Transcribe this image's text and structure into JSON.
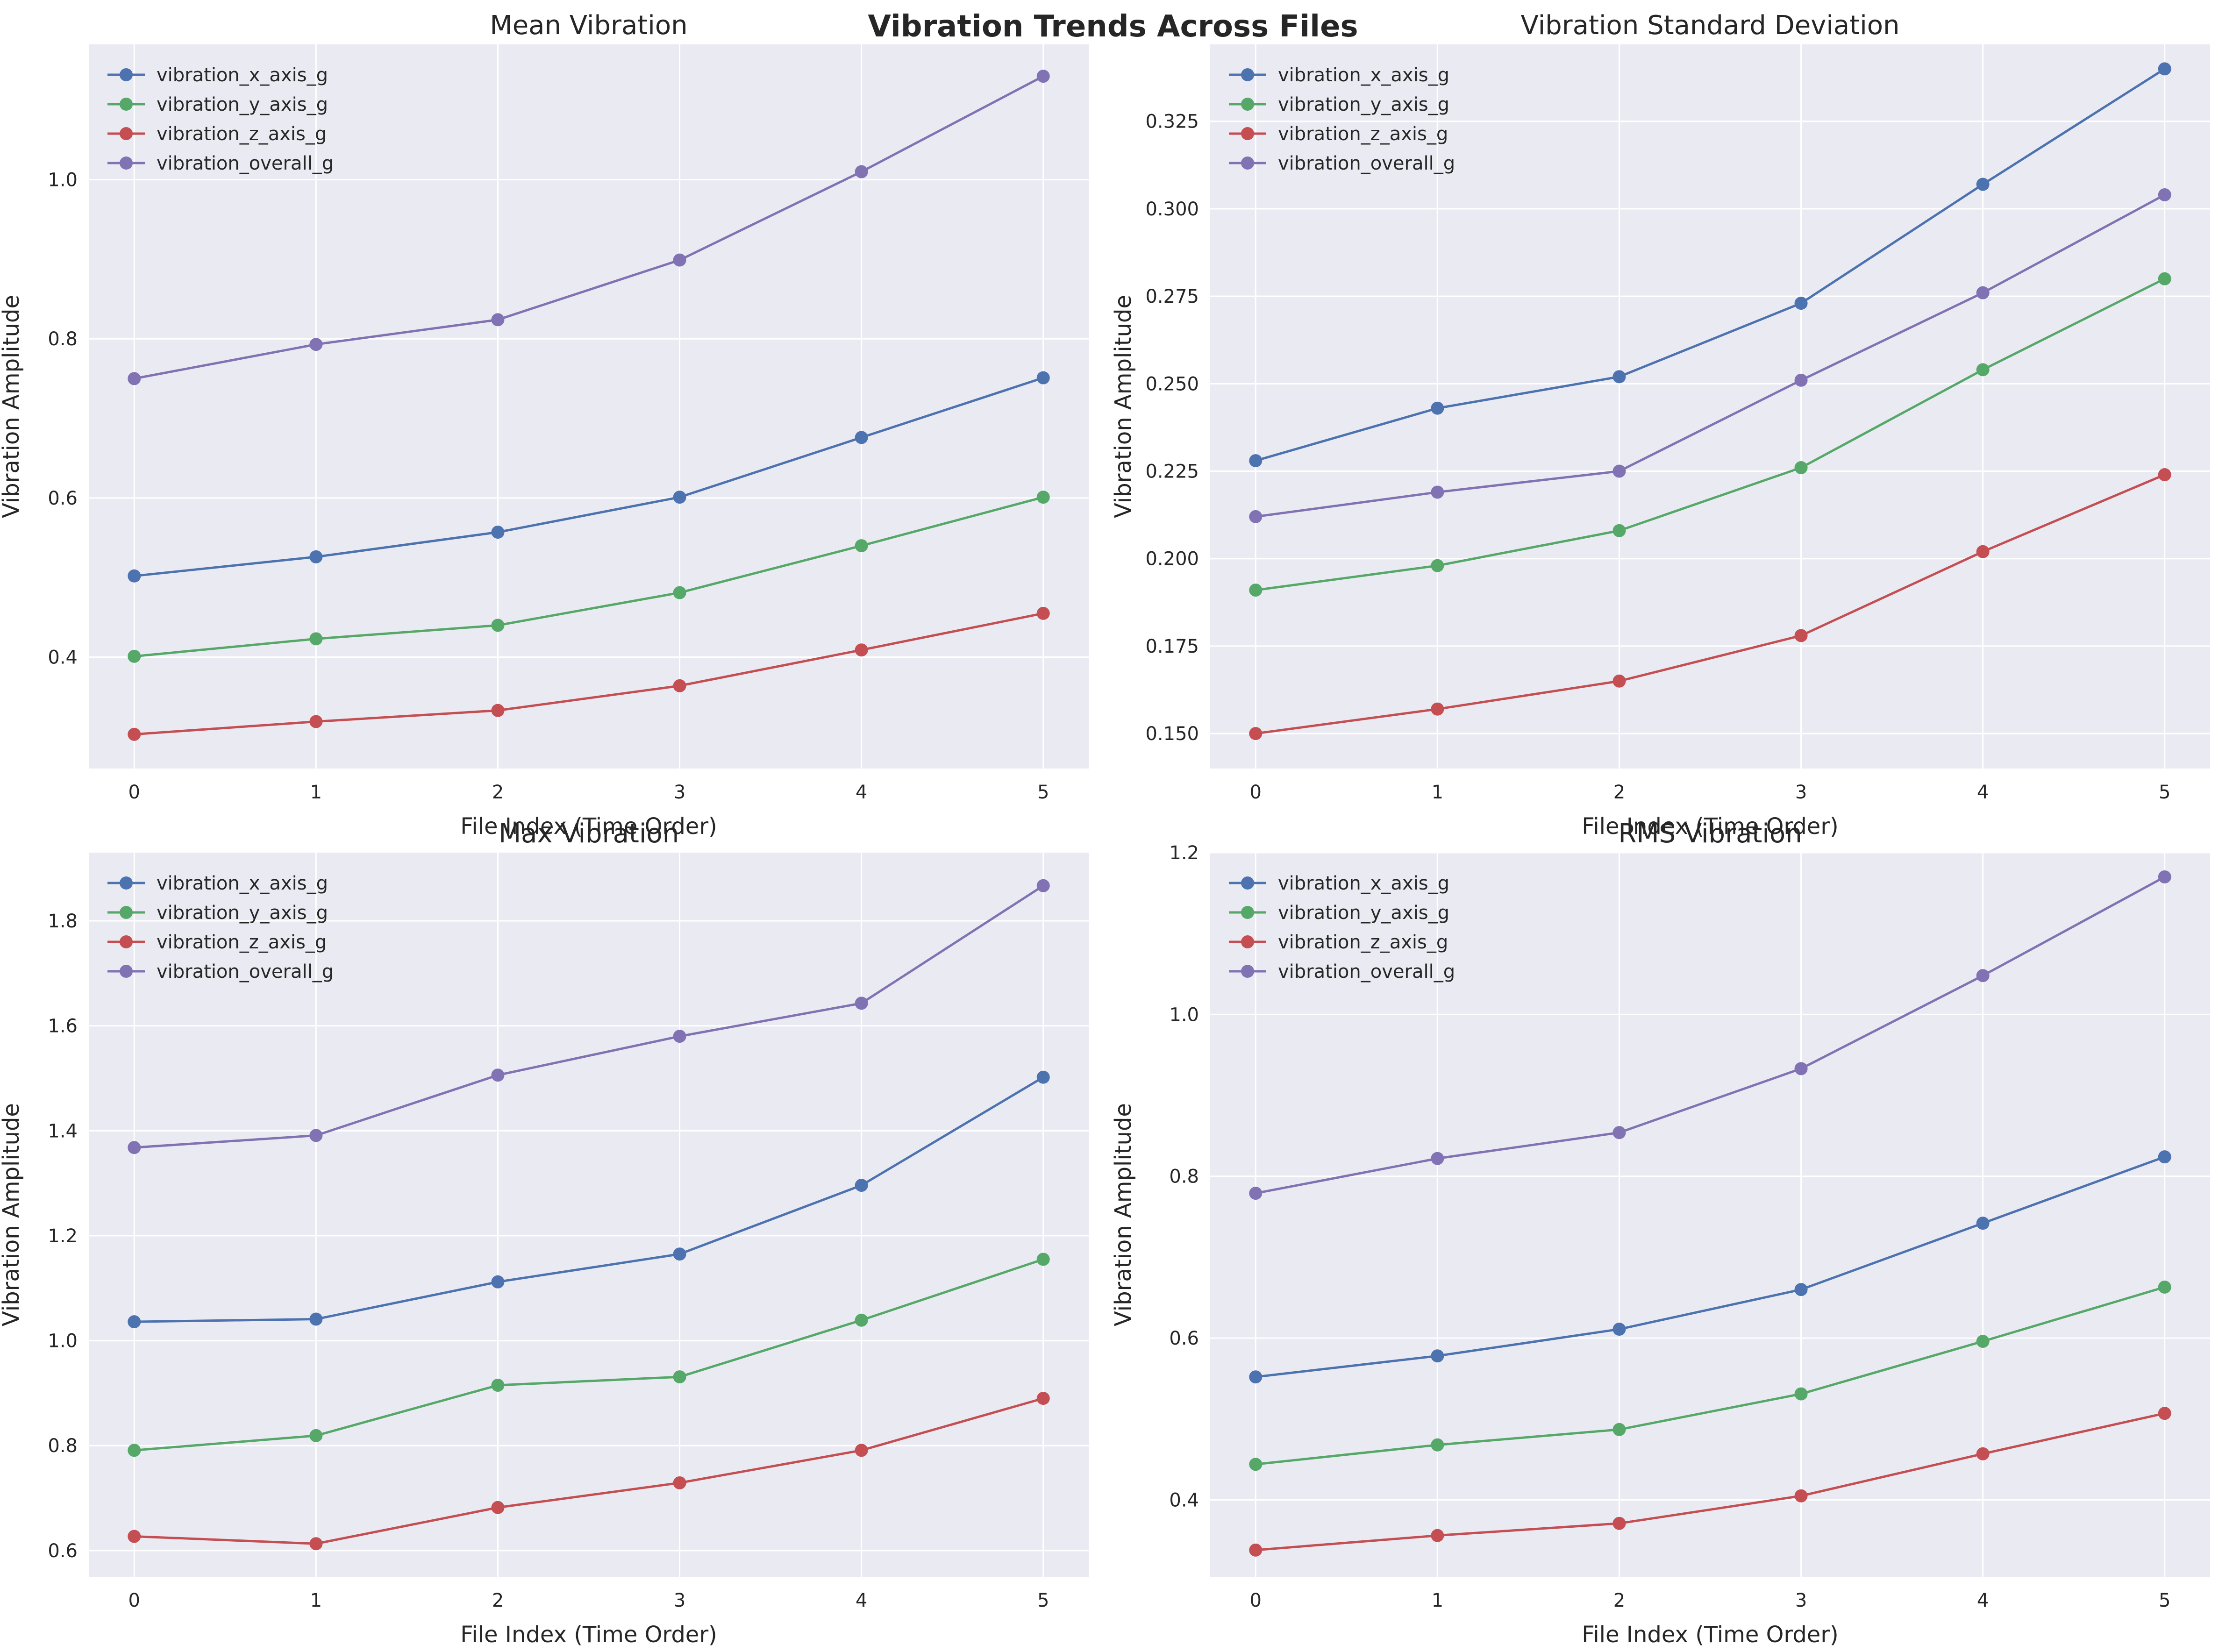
{
  "suptitle": "Vibration Trends Across Files",
  "colors": {
    "vibration_x_axis_g": "#4c72b0",
    "vibration_y_axis_g": "#55a868",
    "vibration_z_axis_g": "#c44e52",
    "vibration_overall_g": "#8172b3",
    "panel_bg": "#eaeaf2",
    "grid": "#ffffff"
  },
  "chart_data": [
    {
      "type": "line",
      "title": "Mean Vibration",
      "xlabel": "File Index (Time Order)",
      "ylabel": "Vibration Amplitude",
      "x": [
        0,
        1,
        2,
        3,
        4,
        5
      ],
      "xticks": [
        "0",
        "1",
        "2",
        "3",
        "4",
        "5"
      ],
      "xlim": [
        -0.25,
        5.25
      ],
      "ylim": [
        0.26,
        1.17
      ],
      "yticks": [
        "0.4",
        "0.6",
        "0.8",
        "1.0"
      ],
      "ytick_values": [
        0.4,
        0.6,
        0.8,
        1.0
      ],
      "grid": true,
      "legend": "top-left",
      "series": [
        {
          "name": "vibration_x_axis_g",
          "values": [
            0.502,
            0.526,
            0.557,
            0.601,
            0.676,
            0.751
          ]
        },
        {
          "name": "vibration_y_axis_g",
          "values": [
            0.401,
            0.423,
            0.44,
            0.481,
            0.54,
            0.601
          ]
        },
        {
          "name": "vibration_z_axis_g",
          "values": [
            0.303,
            0.319,
            0.333,
            0.364,
            0.409,
            0.455
          ]
        },
        {
          "name": "vibration_overall_g",
          "values": [
            0.75,
            0.793,
            0.824,
            0.899,
            1.01,
            1.13
          ]
        }
      ]
    },
    {
      "type": "line",
      "title": "Vibration Standard Deviation",
      "xlabel": "File Index (Time Order)",
      "ylabel": "Vibration Amplitude",
      "x": [
        0,
        1,
        2,
        3,
        4,
        5
      ],
      "xticks": [
        "0",
        "1",
        "2",
        "3",
        "4",
        "5"
      ],
      "xlim": [
        -0.25,
        5.25
      ],
      "ylim": [
        0.14,
        0.347
      ],
      "yticks": [
        "0.150",
        "0.175",
        "0.200",
        "0.225",
        "0.250",
        "0.275",
        "0.300",
        "0.325"
      ],
      "ytick_values": [
        0.15,
        0.175,
        0.2,
        0.225,
        0.25,
        0.275,
        0.3,
        0.325
      ],
      "grid": true,
      "legend": "top-left",
      "series": [
        {
          "name": "vibration_x_axis_g",
          "values": [
            0.228,
            0.243,
            0.252,
            0.273,
            0.307,
            0.34
          ]
        },
        {
          "name": "vibration_y_axis_g",
          "values": [
            0.191,
            0.198,
            0.208,
            0.226,
            0.254,
            0.28
          ]
        },
        {
          "name": "vibration_z_axis_g",
          "values": [
            0.15,
            0.157,
            0.165,
            0.178,
            0.202,
            0.224
          ]
        },
        {
          "name": "vibration_overall_g",
          "values": [
            0.212,
            0.219,
            0.225,
            0.251,
            0.276,
            0.304
          ]
        }
      ]
    },
    {
      "type": "line",
      "title": "Max Vibration",
      "xlabel": "File Index (Time Order)",
      "ylabel": "Vibration Amplitude",
      "x": [
        0,
        1,
        2,
        3,
        4,
        5
      ],
      "xticks": [
        "0",
        "1",
        "2",
        "3",
        "4",
        "5"
      ],
      "xlim": [
        -0.25,
        5.25
      ],
      "ylim": [
        0.55,
        1.93
      ],
      "yticks": [
        "0.6",
        "0.8",
        "1.0",
        "1.2",
        "1.4",
        "1.6",
        "1.8"
      ],
      "ytick_values": [
        0.6,
        0.8,
        1.0,
        1.2,
        1.4,
        1.6,
        1.8
      ],
      "grid": true,
      "legend": "top-left",
      "series": [
        {
          "name": "vibration_x_axis_g",
          "values": [
            1.036,
            1.041,
            1.112,
            1.165,
            1.296,
            1.502
          ]
        },
        {
          "name": "vibration_y_axis_g",
          "values": [
            0.791,
            0.819,
            0.915,
            0.931,
            1.039,
            1.155
          ]
        },
        {
          "name": "vibration_z_axis_g",
          "values": [
            0.627,
            0.613,
            0.682,
            0.729,
            0.791,
            0.89
          ]
        },
        {
          "name": "vibration_overall_g",
          "values": [
            1.368,
            1.391,
            1.506,
            1.58,
            1.643,
            1.867
          ]
        }
      ]
    },
    {
      "type": "line",
      "title": "RMS Vibration",
      "xlabel": "File Index (Time Order)",
      "ylabel": "Vibration Amplitude",
      "x": [
        0,
        1,
        2,
        3,
        4,
        5
      ],
      "xticks": [
        "0",
        "1",
        "2",
        "3",
        "4",
        "5"
      ],
      "xlim": [
        -0.25,
        5.25
      ],
      "ylim": [
        0.305,
        1.2
      ],
      "yticks": [
        "0.4",
        "0.6",
        "0.8",
        "1.0",
        "1.2"
      ],
      "ytick_values": [
        0.4,
        0.6,
        0.8,
        1.0,
        1.2
      ],
      "grid": true,
      "legend": "top-left",
      "series": [
        {
          "name": "vibration_x_axis_g",
          "values": [
            0.552,
            0.578,
            0.611,
            0.66,
            0.742,
            0.824
          ]
        },
        {
          "name": "vibration_y_axis_g",
          "values": [
            0.444,
            0.468,
            0.487,
            0.531,
            0.596,
            0.663
          ]
        },
        {
          "name": "vibration_z_axis_g",
          "values": [
            0.338,
            0.356,
            0.371,
            0.405,
            0.457,
            0.507
          ]
        },
        {
          "name": "vibration_overall_g",
          "values": [
            0.779,
            0.822,
            0.854,
            0.933,
            1.048,
            1.17
          ]
        }
      ]
    }
  ]
}
